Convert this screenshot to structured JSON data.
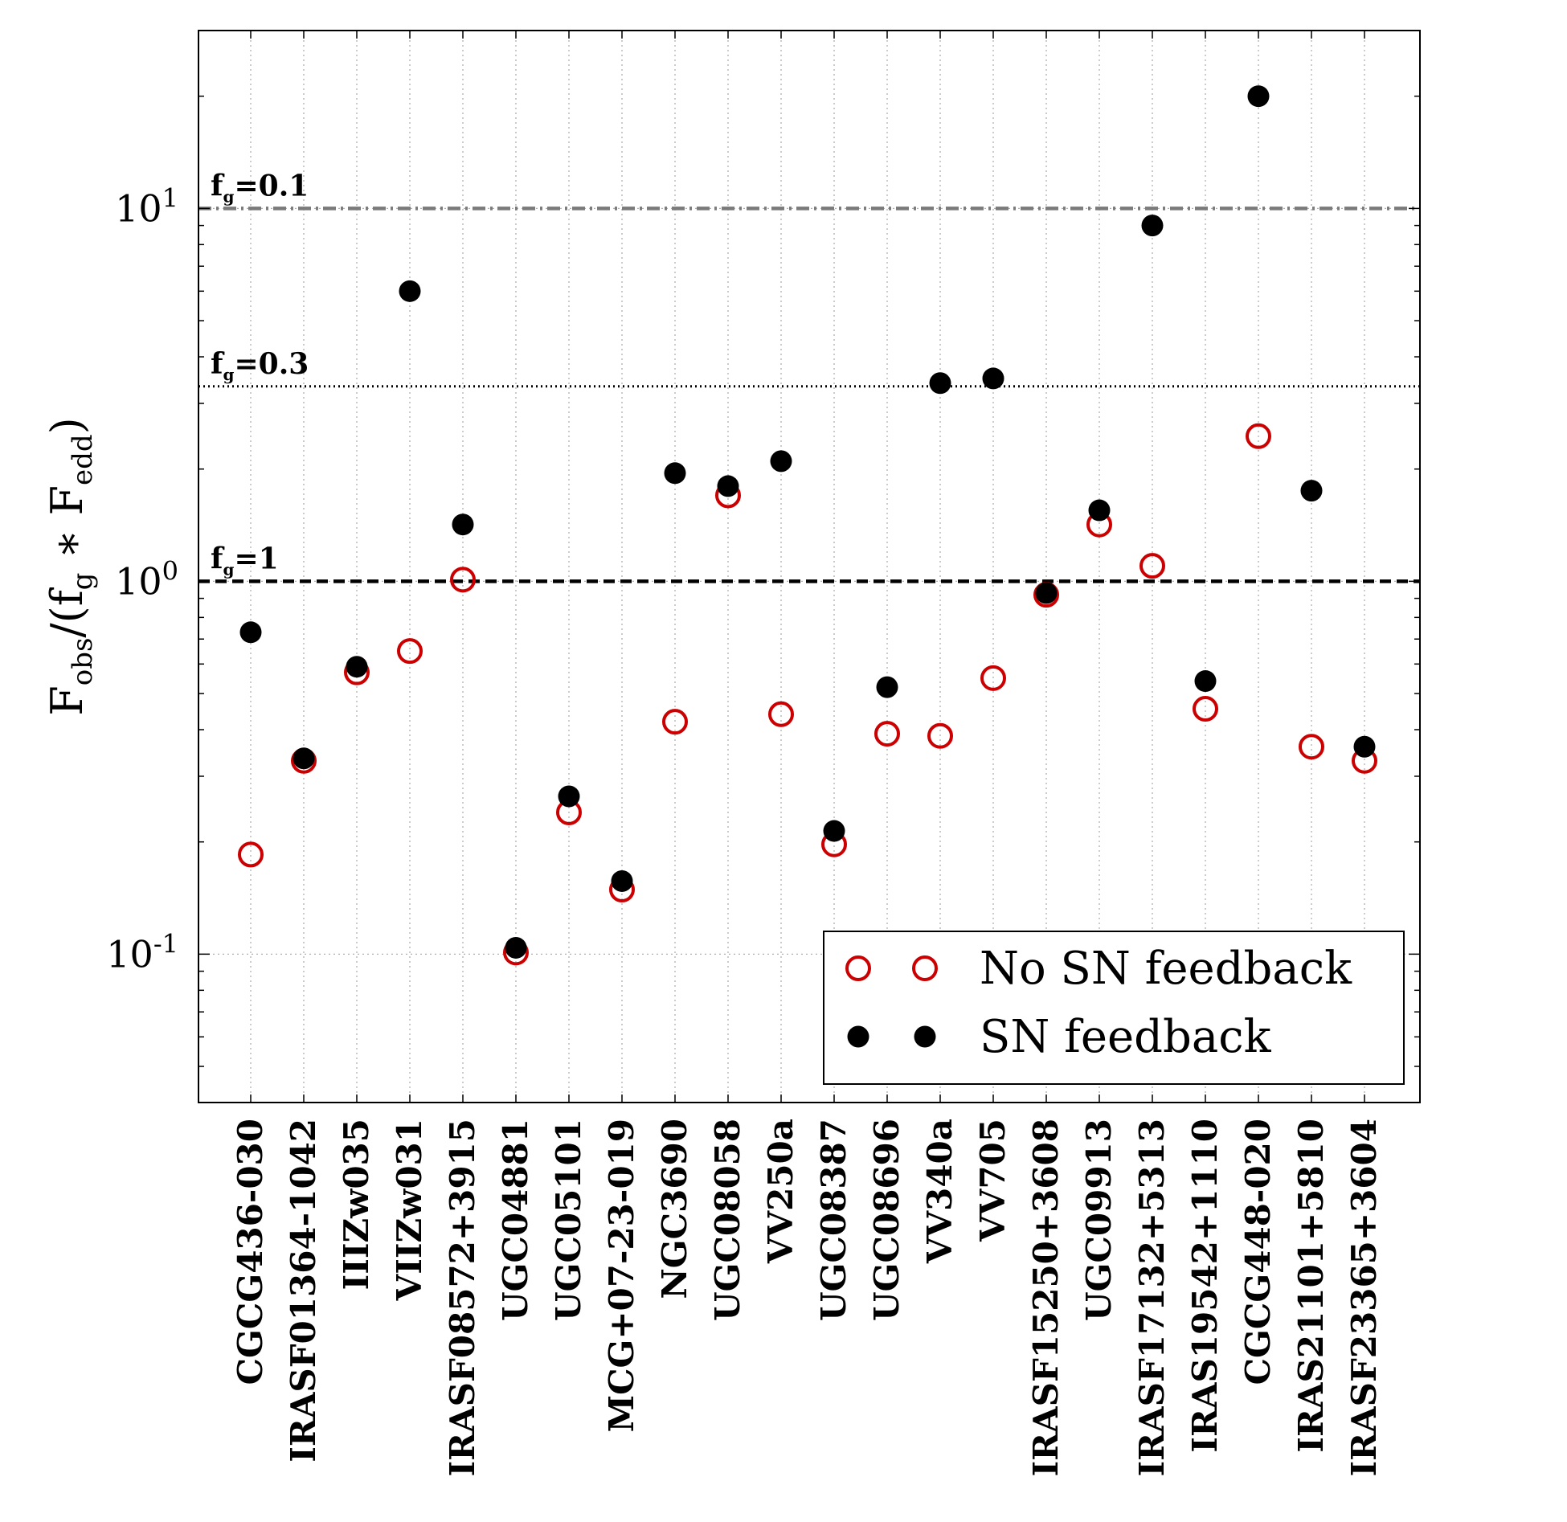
{
  "chart_data": {
    "type": "scatter",
    "ylabel": "F_obs/(f_g * F_edd)",
    "yscale": "log",
    "ylim": [
      0.04,
      30
    ],
    "grid": true,
    "categories": [
      "CGCG436-030",
      "IRASF01364-1042",
      "IIIZw035",
      "VIIZw031",
      "IRASF08572+3915",
      "UGC04881",
      "UGC05101",
      "MCG+07-23-019",
      "NGC3690",
      "UGC08058",
      "VV250a",
      "UGC08387",
      "UGC08696",
      "VV340a",
      "VV705",
      "IRASF15250+3608",
      "UGC09913",
      "IRASF17132+5313",
      "IRAS19542+1110",
      "CGCG448-020",
      "IRAS21101+5810",
      "IRASF23365+3604"
    ],
    "series": [
      {
        "name": "No SN feedback",
        "marker": "open-circle",
        "color": "#cc0000",
        "values": [
          0.185,
          0.33,
          0.57,
          0.65,
          1.01,
          0.101,
          0.24,
          0.149,
          0.42,
          1.7,
          0.44,
          0.197,
          0.39,
          0.385,
          0.55,
          0.92,
          1.42,
          1.1,
          0.455,
          2.45,
          0.36,
          0.33
        ]
      },
      {
        "name": "SN feedback",
        "marker": "filled-circle",
        "color": "#000000",
        "values": [
          0.73,
          0.335,
          0.59,
          6.0,
          1.42,
          0.104,
          0.265,
          0.157,
          1.95,
          1.8,
          2.1,
          0.214,
          0.52,
          3.4,
          3.5,
          0.93,
          1.55,
          9.0,
          0.54,
          20.0,
          1.75,
          0.36
        ]
      }
    ],
    "reference_lines": [
      {
        "y": 10,
        "label_main": "f",
        "label_sub": "g",
        "label_rest": "=0.1",
        "style": "dashdot",
        "color": "#7a7a7a"
      },
      {
        "y": 3.333,
        "label_main": "f",
        "label_sub": "g",
        "label_rest": "=0.3",
        "style": "dotted",
        "color": "#000000"
      },
      {
        "y": 1,
        "label_main": "f",
        "label_sub": "g",
        "label_rest": "=1",
        "style": "dashed",
        "color": "#000000"
      }
    ],
    "yticks": [
      {
        "value": 10,
        "base": "10",
        "exp": "1"
      },
      {
        "value": 1,
        "base": "10",
        "exp": "0"
      },
      {
        "value": 0.1,
        "base": "10",
        "exp": "-1"
      }
    ],
    "legend": {
      "position": "lower-right",
      "entries": [
        "No SN feedback",
        "SN feedback"
      ]
    }
  }
}
